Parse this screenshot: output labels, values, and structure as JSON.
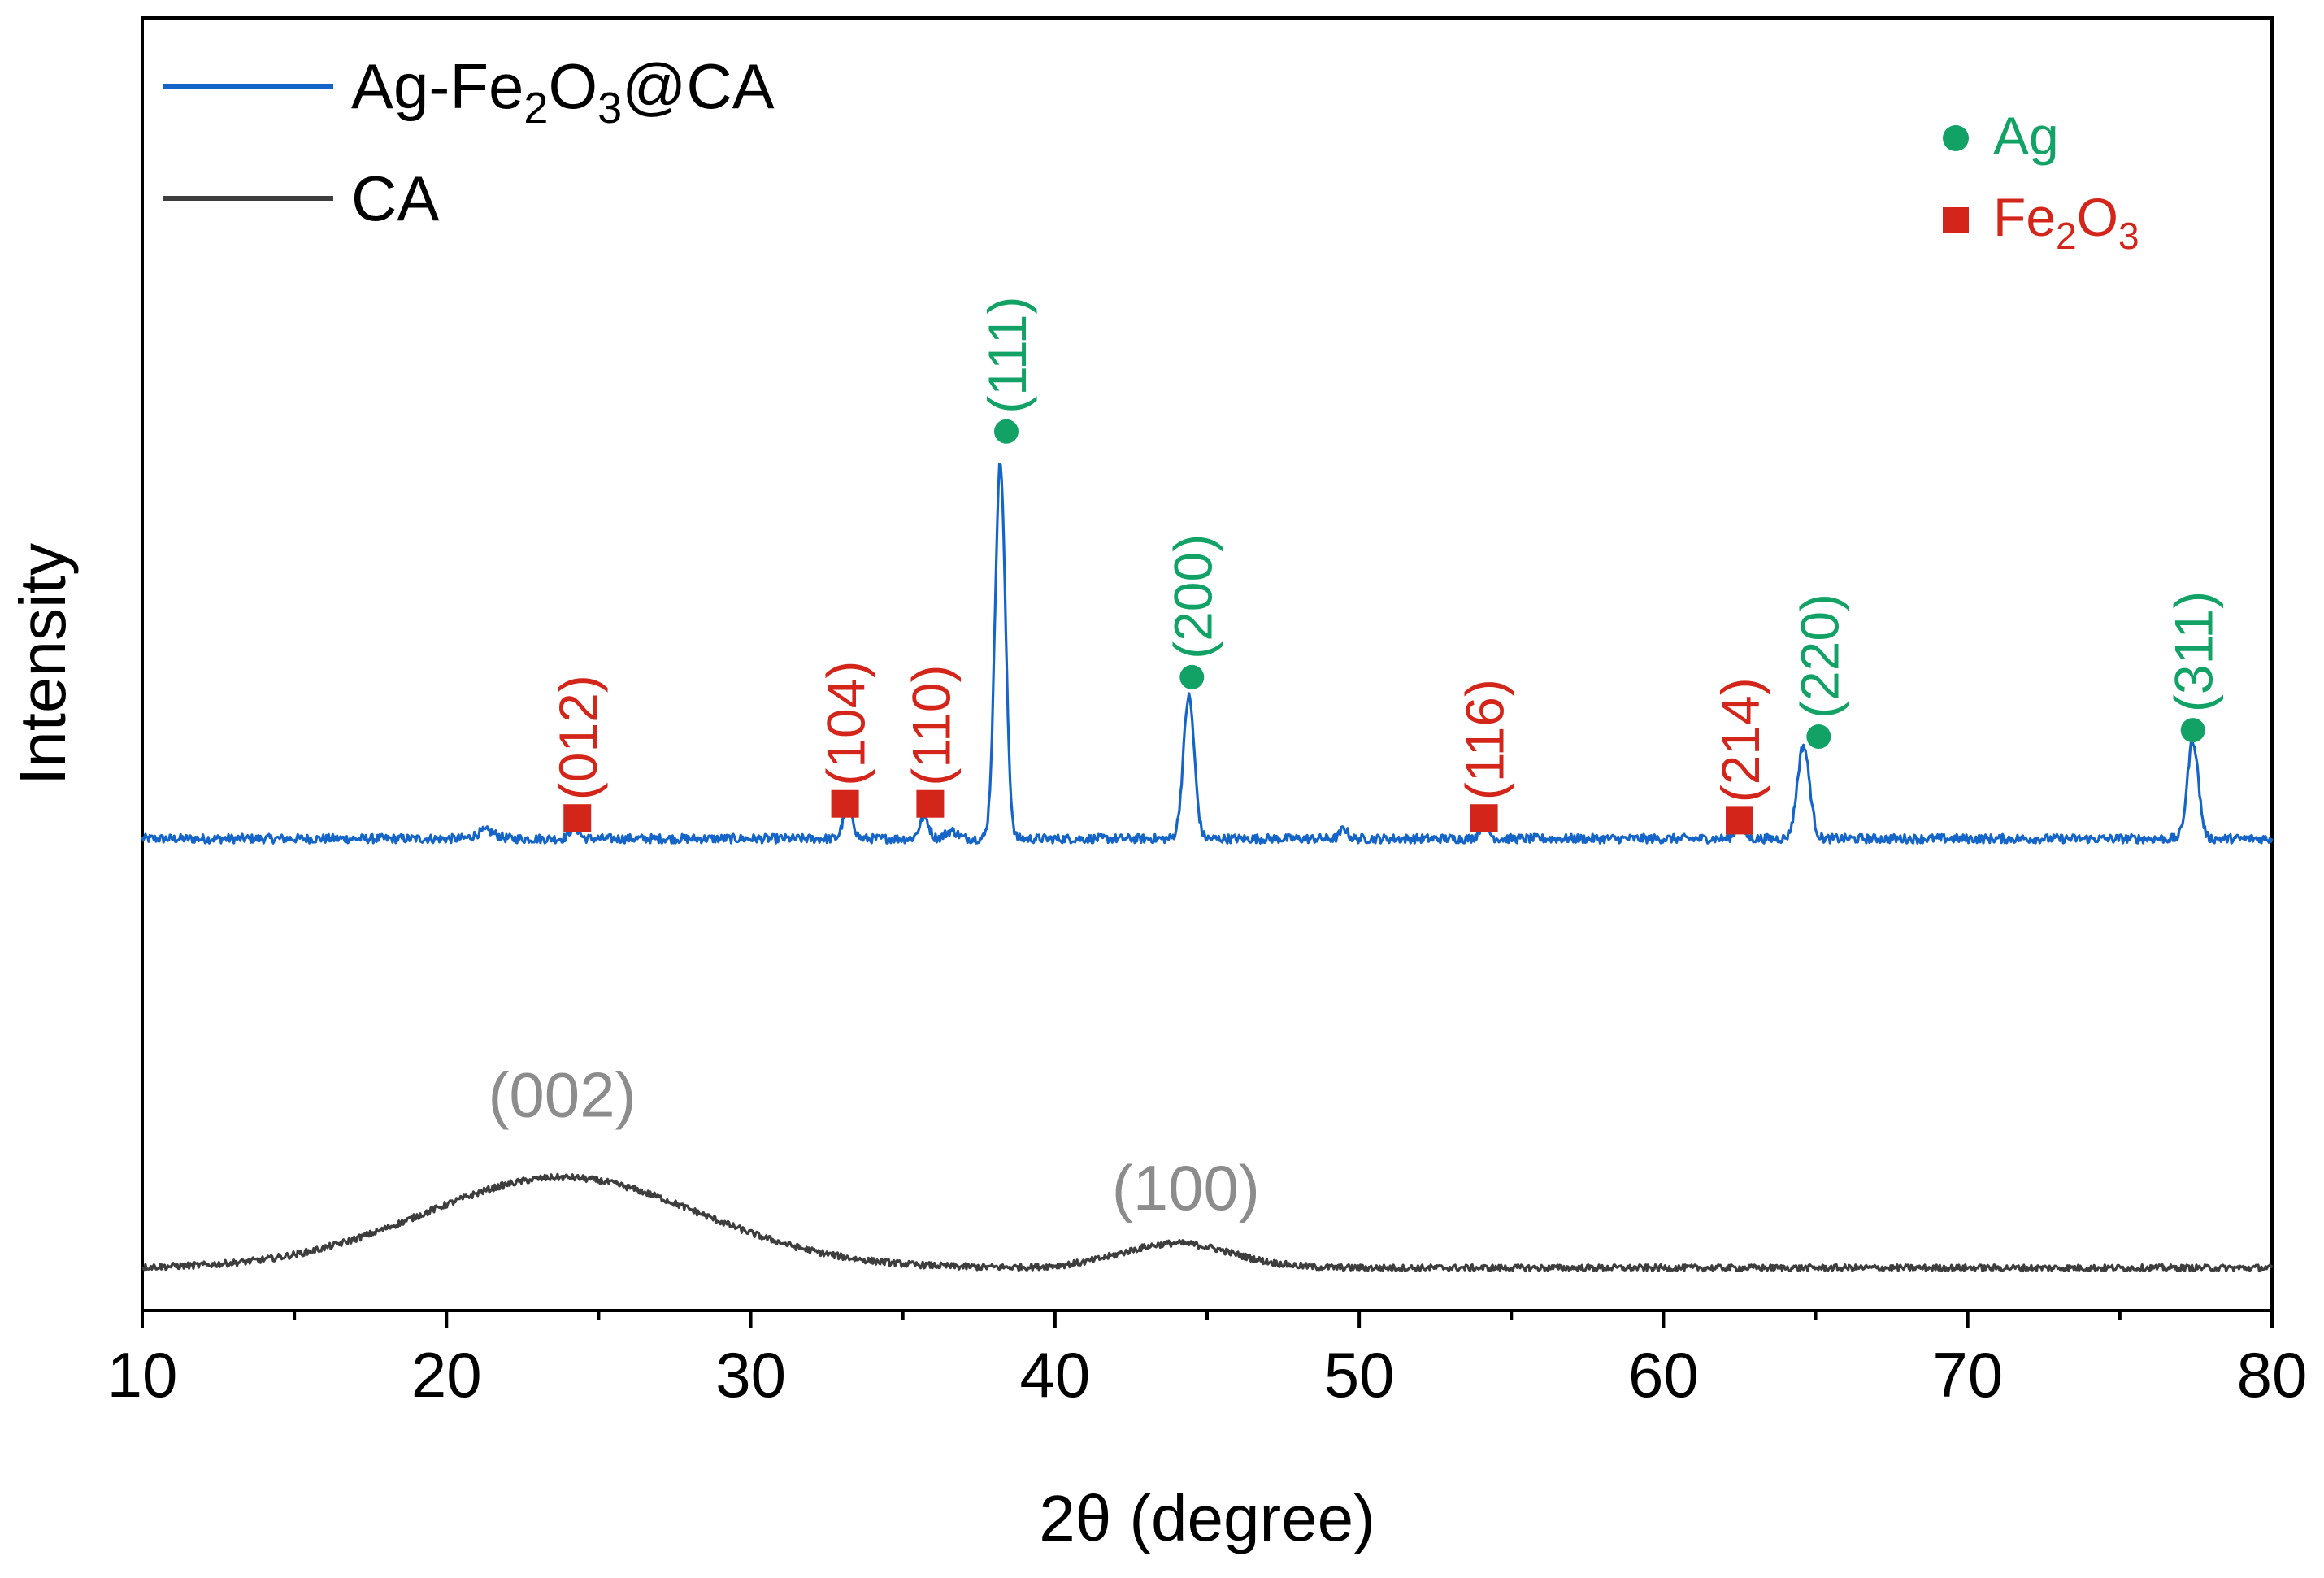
{
  "chart_data": {
    "type": "line",
    "title": "",
    "xlabel": "2θ (degree)",
    "ylabel": "Intensity",
    "xlim": [
      10,
      80
    ],
    "ylim": [
      0,
      100
    ],
    "x_ticks": [
      10,
      20,
      30,
      40,
      50,
      60,
      70,
      80
    ],
    "x_tick_labels": [
      "10",
      "20",
      "30",
      "40",
      "50",
      "60",
      "70",
      "80"
    ],
    "grid": false,
    "y_tick_labels_visible": false,
    "legend": {
      "position": "top-left",
      "entries": [
        {
          "name": "Ag-Fe",
          "sub1": "2",
          "mid": "O",
          "sub2": "3",
          "tail": "@CA",
          "color": "#1565c8"
        },
        {
          "name": "CA",
          "color": "#3d3d3d"
        }
      ]
    },
    "phase_legend": {
      "position": "top-right",
      "entries": [
        {
          "marker": "circle",
          "name": "Ag",
          "color": "#12a265"
        },
        {
          "marker": "square",
          "name": "Fe",
          "sub1": "2",
          "mid": "O",
          "sub2": "3",
          "color": "#d4251b"
        }
      ]
    },
    "series": [
      {
        "name": "Ag-Fe2O3@CA",
        "color": "#1565c8",
        "baseline": 36.5,
        "noise": 0.35,
        "peaks": [
          {
            "x": 21.3,
            "height": 0.6,
            "width": 0.3
          },
          {
            "x": 24.2,
            "height": 0.9,
            "width": 0.15
          },
          {
            "x": 33.2,
            "height": 2.7,
            "width": 0.15
          },
          {
            "x": 35.7,
            "height": 1.7,
            "width": 0.15
          },
          {
            "x": 36.6,
            "height": 0.6,
            "width": 0.2
          },
          {
            "x": 38.2,
            "height": 29.0,
            "width": 0.17
          },
          {
            "x": 44.4,
            "height": 11.0,
            "width": 0.18
          },
          {
            "x": 49.5,
            "height": 0.8,
            "width": 0.12
          },
          {
            "x": 54.1,
            "height": 1.1,
            "width": 0.15
          },
          {
            "x": 62.5,
            "height": 1.0,
            "width": 0.15
          },
          {
            "x": 64.6,
            "height": 7.2,
            "width": 0.2
          },
          {
            "x": 77.4,
            "height": 7.6,
            "width": 0.18
          }
        ]
      },
      {
        "name": "CA",
        "color": "#3d3d3d",
        "baseline": 3.3,
        "noise": 0.25,
        "peaks": [
          {
            "x": 23.8,
            "height": 7.0,
            "width": 4.5
          },
          {
            "x": 44.0,
            "height": 1.9,
            "width": 1.8
          }
        ]
      }
    ],
    "peak_labels": [
      {
        "label": "(012)",
        "x": 24.3,
        "phase": "Fe2O3",
        "marker_y": 38.1,
        "color": "#d4251b"
      },
      {
        "label": "(104)",
        "x": 33.1,
        "phase": "Fe2O3",
        "marker_y": 39.2,
        "color": "#d4251b"
      },
      {
        "label": "(110)",
        "x": 35.9,
        "phase": "Fe2O3",
        "marker_y": 39.2,
        "color": "#d4251b"
      },
      {
        "label": "(111)",
        "x": 38.4,
        "phase": "Ag",
        "marker_y": 68.0,
        "color": "#12a265"
      },
      {
        "label": "(200)",
        "x": 44.5,
        "phase": "Ag",
        "marker_y": 49.0,
        "color": "#12a265"
      },
      {
        "label": "(116)",
        "x": 54.1,
        "phase": "Fe2O3",
        "marker_y": 38.1,
        "color": "#d4251b"
      },
      {
        "label": "(214)",
        "x": 62.5,
        "phase": "Fe2O3",
        "marker_y": 37.9,
        "color": "#d4251b"
      },
      {
        "label": "(220)",
        "x": 65.1,
        "phase": "Ag",
        "marker_y": 44.4,
        "color": "#12a265"
      },
      {
        "label": "(311)",
        "x": 77.4,
        "phase": "Ag",
        "marker_y": 44.9,
        "color": "#12a265"
      }
    ],
    "ca_labels": [
      {
        "label": "(002)",
        "x": 23.8,
        "y": 15.0,
        "color": "#8c8c8c"
      },
      {
        "label": "(100)",
        "x": 44.3,
        "y": 7.8,
        "color": "#8c8c8c"
      }
    ]
  }
}
